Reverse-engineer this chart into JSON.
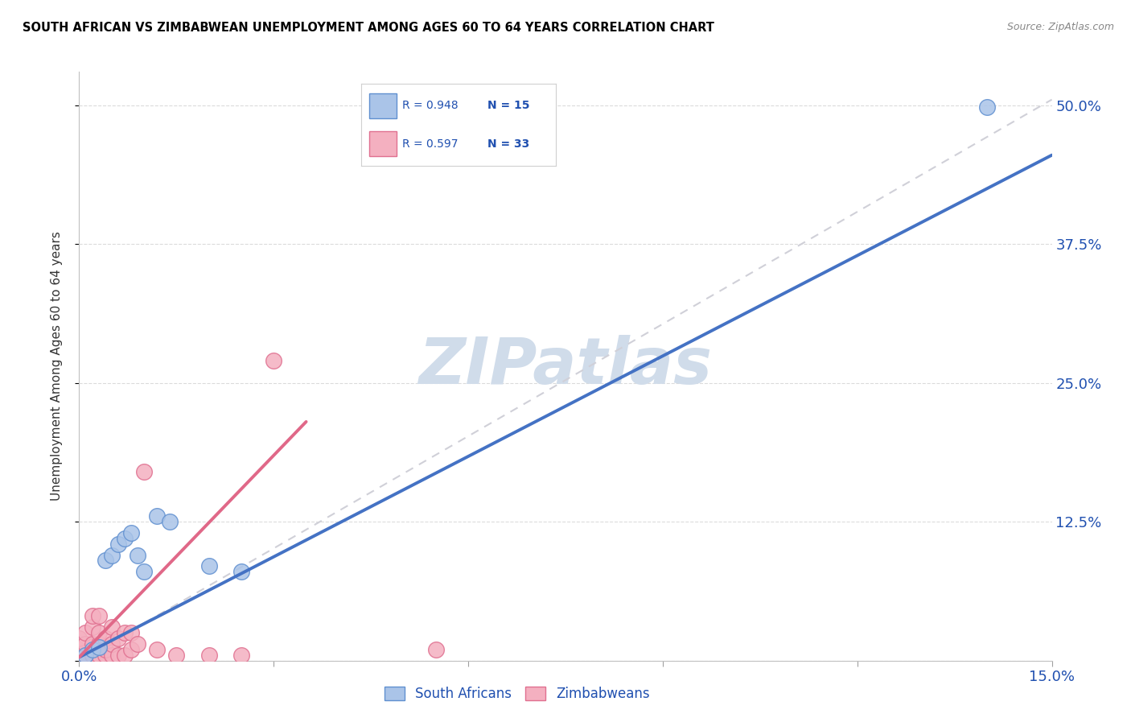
{
  "title": "SOUTH AFRICAN VS ZIMBABWEAN UNEMPLOYMENT AMONG AGES 60 TO 64 YEARS CORRELATION CHART",
  "source": "Source: ZipAtlas.com",
  "ylabel": "Unemployment Among Ages 60 to 64 years",
  "xlim": [
    0.0,
    0.15
  ],
  "ylim": [
    0.0,
    0.53
  ],
  "sa_color": "#aac4e8",
  "sa_edge_color": "#6090d0",
  "zim_color": "#f4b0c0",
  "zim_edge_color": "#e07090",
  "sa_line_color": "#4472c4",
  "zim_line_color": "#e06888",
  "ref_line_color": "#d0d0d8",
  "watermark": "ZIPatlas",
  "watermark_color": "#d0dcea",
  "sa_R": 0.948,
  "sa_N": 15,
  "zim_R": 0.597,
  "zim_N": 33,
  "sa_scatter_x": [
    0.001,
    0.002,
    0.003,
    0.004,
    0.005,
    0.006,
    0.007,
    0.008,
    0.009,
    0.01,
    0.012,
    0.014,
    0.02,
    0.025,
    0.14
  ],
  "sa_scatter_y": [
    0.005,
    0.01,
    0.012,
    0.09,
    0.095,
    0.105,
    0.11,
    0.115,
    0.095,
    0.08,
    0.13,
    0.125,
    0.085,
    0.08,
    0.498
  ],
  "zim_scatter_x": [
    0.0,
    0.0,
    0.001,
    0.001,
    0.001,
    0.002,
    0.002,
    0.002,
    0.002,
    0.003,
    0.003,
    0.003,
    0.003,
    0.004,
    0.004,
    0.004,
    0.005,
    0.005,
    0.005,
    0.006,
    0.006,
    0.007,
    0.007,
    0.008,
    0.008,
    0.009,
    0.01,
    0.012,
    0.015,
    0.02,
    0.025,
    0.03,
    0.055
  ],
  "zim_scatter_y": [
    0.01,
    0.02,
    0.005,
    0.015,
    0.025,
    0.005,
    0.015,
    0.03,
    0.04,
    0.005,
    0.015,
    0.025,
    0.04,
    0.005,
    0.01,
    0.02,
    0.005,
    0.015,
    0.03,
    0.005,
    0.02,
    0.005,
    0.025,
    0.01,
    0.025,
    0.015,
    0.17,
    0.01,
    0.005,
    0.005,
    0.005,
    0.27,
    0.01
  ],
  "sa_line_x": [
    0.0,
    0.15
  ],
  "sa_line_y": [
    0.003,
    0.455
  ],
  "zim_line_x": [
    0.0,
    0.035
  ],
  "zim_line_y": [
    0.003,
    0.215
  ],
  "ref_line_x": [
    0.0,
    0.15
  ],
  "ref_line_y": [
    0.0,
    0.505
  ],
  "background_color": "#ffffff",
  "grid_color": "#d8d8d8"
}
